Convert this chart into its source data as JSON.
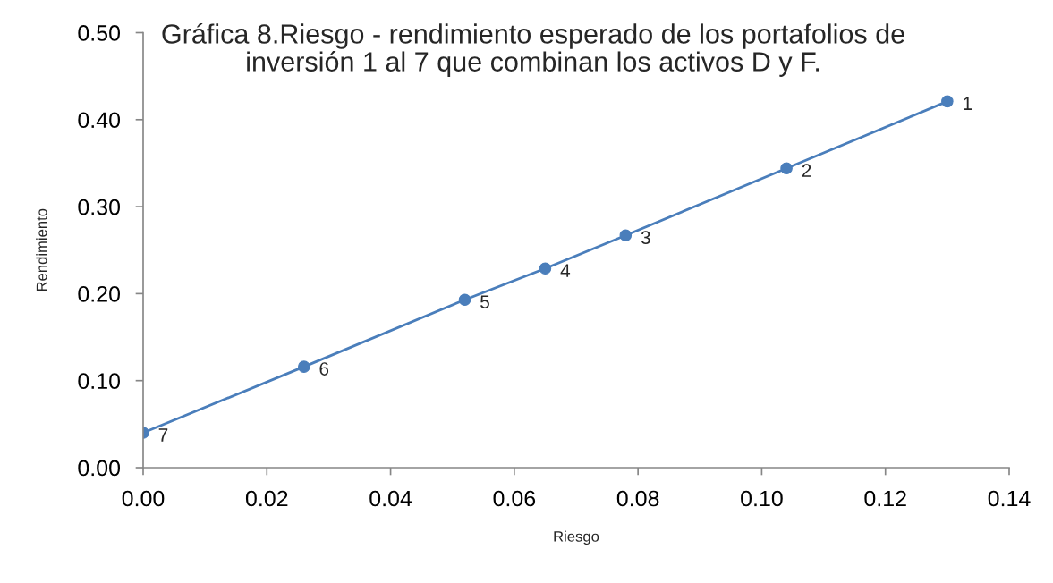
{
  "chart_data": {
    "type": "line",
    "title": "Gráfica 8.Riesgo - rendimiento esperado de los portafolios de\ninversión 1 al 7 que combinan los activos D y F.",
    "xlabel": "Riesgo",
    "ylabel": "Rendimiento",
    "x": [
      0.13,
      0.104,
      0.078,
      0.065,
      0.052,
      0.026,
      0.0
    ],
    "series": [
      {
        "color": "#4a7ebb",
        "values": [
          0.421,
          0.344,
          0.267,
          0.229,
          0.193,
          0.116,
          0.04
        ]
      }
    ],
    "xlim": [
      0,
      0.14
    ],
    "xticks": [
      {
        "value": 0,
        "label": "0.00"
      },
      0.02,
      0.04,
      0.06,
      0.08,
      {
        "value": 0.1,
        "label": "0.10"
      },
      0.12,
      0.14
    ],
    "ylim": [
      0,
      0.5
    ],
    "yticks": [
      {
        "value": 0,
        "label": "0.00"
      },
      {
        "value": 0.1,
        "label": "0.10"
      },
      {
        "value": 0.2,
        "label": "0.20"
      },
      {
        "value": 0.3,
        "label": "0.30"
      },
      {
        "value": 0.4,
        "label": "0.40"
      },
      {
        "value": 0.5,
        "label": "0.50"
      }
    ],
    "grid": false,
    "marker": "circle",
    "line_style": "solid",
    "annotations": [
      {
        "text": "1",
        "x": 0.13,
        "y": 0.421
      },
      {
        "text": "2",
        "x": 0.104,
        "y": 0.344
      },
      {
        "text": "3",
        "x": 0.078,
        "y": 0.267
      },
      {
        "text": "4",
        "x": 0.065,
        "y": 0.229
      },
      {
        "text": "5",
        "x": 0.052,
        "y": 0.193
      },
      {
        "text": "6",
        "x": 0.026,
        "y": 0.116
      },
      {
        "text": "7",
        "x": 0.0,
        "y": 0.04
      }
    ]
  }
}
